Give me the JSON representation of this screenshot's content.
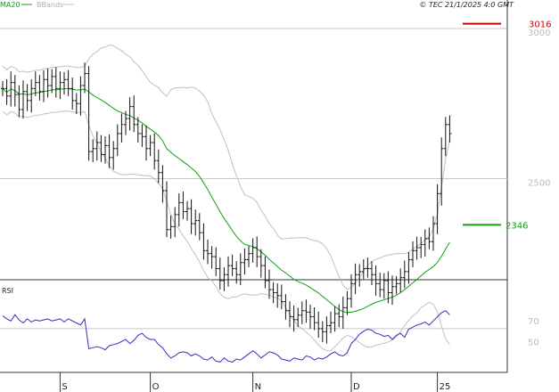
{
  "header": {
    "legend": [
      {
        "label": "MA20",
        "color": "#11a011"
      },
      {
        "label": "BBands",
        "color": "#c0c0c0"
      }
    ],
    "copyright": "© TEC 21/1/2025 4:0 GMT"
  },
  "chart_data": [
    {
      "type": "candlestick",
      "panel": "price",
      "title": "",
      "ylim": [
        2163,
        3095
      ],
      "y_ticks": [
        {
          "value": 3000,
          "label": "3000"
        },
        {
          "value": 2500,
          "label": "2500"
        }
      ],
      "grid_lines": [
        3000,
        2500,
        2000
      ],
      "x_ticks": [
        {
          "index": 14,
          "label": "S"
        },
        {
          "index": 36,
          "label": "O"
        },
        {
          "index": 61,
          "label": "N"
        },
        {
          "index": 85,
          "label": "D"
        },
        {
          "index": 106,
          "label": "25"
        }
      ],
      "close": [
        2800,
        2775,
        2820,
        2780,
        2730,
        2790,
        2760,
        2800,
        2820,
        2790,
        2830,
        2810,
        2840,
        2800,
        2820,
        2830,
        2800,
        2760,
        2750,
        2810,
        2850,
        2590,
        2600,
        2620,
        2580,
        2610,
        2570,
        2600,
        2650,
        2680,
        2700,
        2740,
        2680,
        2650,
        2640,
        2600,
        2620,
        2560,
        2520,
        2460,
        2330,
        2340,
        2380,
        2420,
        2390,
        2400,
        2350,
        2360,
        2320,
        2260,
        2250,
        2240,
        2200,
        2160,
        2180,
        2210,
        2200,
        2180,
        2220,
        2230,
        2250,
        2270,
        2240,
        2210,
        2160,
        2130,
        2120,
        2110,
        2090,
        2060,
        2040,
        2030,
        2045,
        2060,
        2055,
        2040,
        2020,
        2000,
        1990,
        2010,
        2020,
        2050,
        2040,
        2070,
        2100,
        2150,
        2180,
        2190,
        2200,
        2200,
        2180,
        2150,
        2130,
        2160,
        2120,
        2140,
        2150,
        2170,
        2190,
        2230,
        2260,
        2270,
        2280,
        2300,
        2290,
        2350,
        2450,
        2600,
        2680,
        2650
      ],
      "bands": {
        "ma20_label": "2346",
        "ma20_color": "#11a011",
        "ma_upper_lower_color": "#c0c0c0"
      },
      "levels": [
        {
          "name": "resistance",
          "value": 3016,
          "label": "3016",
          "color": "#cc0000"
        },
        {
          "name": "ma20",
          "value": 2346,
          "label": "2346",
          "color": "#11a011"
        }
      ]
    },
    {
      "type": "line",
      "panel": "rsi",
      "title": "RSI",
      "ylim": [
        20,
        110
      ],
      "y_ticks": [
        {
          "value": 70,
          "label": "70"
        },
        {
          "value": 50,
          "label": "50"
        }
      ],
      "series": [
        {
          "name": "RSI",
          "color": "#3030c0",
          "values": [
            75,
            72,
            70,
            76,
            71,
            68,
            72,
            69,
            71,
            70,
            71,
            72,
            70,
            71,
            72,
            69,
            72,
            70,
            68,
            66,
            72,
            43,
            44,
            45,
            44,
            42,
            46,
            47,
            48,
            50,
            52,
            48,
            51,
            56,
            58,
            54,
            52,
            52,
            47,
            44,
            38,
            34,
            36,
            39,
            40,
            39,
            36,
            38,
            36,
            33,
            32,
            35,
            31,
            30,
            34,
            31,
            30,
            33,
            32,
            35,
            38,
            41,
            38,
            34,
            37,
            40,
            39,
            37,
            33,
            32,
            31,
            34,
            33,
            32,
            36,
            35,
            32,
            34,
            33,
            35,
            38,
            40,
            37,
            36,
            39,
            48,
            52,
            57,
            60,
            62,
            61,
            58,
            57,
            55,
            56,
            52,
            56,
            58,
            54,
            62,
            64,
            66,
            67,
            69,
            66,
            70,
            74,
            78,
            80,
            76
          ]
        }
      ]
    }
  ]
}
